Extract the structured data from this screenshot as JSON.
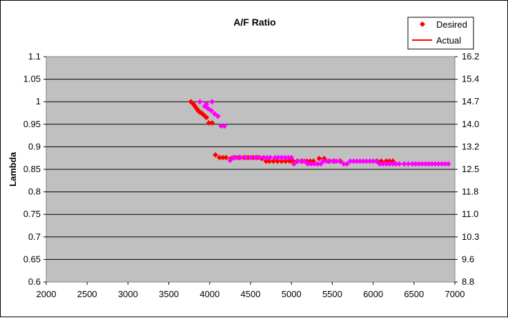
{
  "chart_data": {
    "type": "scatter",
    "title": "A/F Ratio",
    "ylabel": "Lambda",
    "xlabel": "",
    "xlim": [
      2000,
      7000
    ],
    "ylim": [
      0.6,
      1.1
    ],
    "x_ticks": [
      "2000",
      "2500",
      "3000",
      "3500",
      "4000",
      "4500",
      "5000",
      "5500",
      "6000",
      "6500",
      "7000"
    ],
    "y_ticks": [
      "0.6",
      "0.65",
      "0.7",
      "0.75",
      "0.8",
      "0.85",
      "0.9",
      "0.95",
      "1",
      "1.05",
      "1.1"
    ],
    "y2_ticks": [
      "8.8",
      "9.6",
      "10.3",
      "11.0",
      "11.8",
      "12.5",
      "13.2",
      "14.0",
      "14.7",
      "15.4",
      "16.2"
    ],
    "grid": "horizontal",
    "legend": "top-right",
    "legend_entries": {
      "desired": "Desired",
      "actual": "Actual"
    },
    "colors": {
      "plot_bg": "#c0c0c0",
      "desired": "#ff0000",
      "magenta": "#ff00ff",
      "actual": "#ff0000"
    },
    "series": [
      {
        "name": "Desired",
        "color": "#ff0000",
        "points": [
          [
            3770,
            1.0
          ],
          [
            3800,
            0.995
          ],
          [
            3820,
            0.99
          ],
          [
            3840,
            0.985
          ],
          [
            3860,
            0.98
          ],
          [
            3880,
            0.977
          ],
          [
            3900,
            0.975
          ],
          [
            3930,
            0.97
          ],
          [
            3960,
            0.965
          ],
          [
            3990,
            0.953
          ],
          [
            4030,
            0.953
          ],
          [
            4070,
            0.882
          ],
          [
            4120,
            0.876
          ],
          [
            4160,
            0.876
          ],
          [
            4200,
            0.876
          ],
          [
            4260,
            0.874
          ],
          [
            4300,
            0.876
          ],
          [
            4360,
            0.876
          ],
          [
            4420,
            0.876
          ],
          [
            4470,
            0.876
          ],
          [
            4530,
            0.876
          ],
          [
            4580,
            0.876
          ],
          [
            4640,
            0.874
          ],
          [
            4690,
            0.868
          ],
          [
            4730,
            0.868
          ],
          [
            4780,
            0.868
          ],
          [
            4830,
            0.868
          ],
          [
            4880,
            0.868
          ],
          [
            4930,
            0.868
          ],
          [
            4980,
            0.868
          ],
          [
            5020,
            0.868
          ],
          [
            5070,
            0.868
          ],
          [
            5130,
            0.868
          ],
          [
            5190,
            0.868
          ],
          [
            5230,
            0.868
          ],
          [
            5270,
            0.868
          ],
          [
            5340,
            0.874
          ],
          [
            5400,
            0.874
          ],
          [
            5460,
            0.868
          ],
          [
            5520,
            0.868
          ],
          [
            5600,
            0.868
          ],
          [
            6050,
            0.868
          ],
          [
            6100,
            0.868
          ],
          [
            6160,
            0.868
          ],
          [
            6200,
            0.868
          ],
          [
            6240,
            0.868
          ]
        ]
      },
      {
        "name": "",
        "color": "#ff00ff",
        "points": [
          [
            3880,
            1.0
          ],
          [
            3960,
            0.995
          ],
          [
            4030,
            1.0
          ],
          [
            3940,
            0.99
          ],
          [
            3980,
            0.985
          ],
          [
            4020,
            0.98
          ],
          [
            4060,
            0.973
          ],
          [
            4100,
            0.968
          ],
          [
            4140,
            0.946
          ],
          [
            4180,
            0.946
          ],
          [
            4250,
            0.87
          ],
          [
            4290,
            0.876
          ],
          [
            4330,
            0.876
          ],
          [
            4380,
            0.876
          ],
          [
            4440,
            0.876
          ],
          [
            4500,
            0.876
          ],
          [
            4560,
            0.876
          ],
          [
            4610,
            0.876
          ],
          [
            4660,
            0.876
          ],
          [
            4700,
            0.876
          ],
          [
            4740,
            0.876
          ],
          [
            4800,
            0.876
          ],
          [
            4840,
            0.876
          ],
          [
            4880,
            0.876
          ],
          [
            4920,
            0.876
          ],
          [
            4960,
            0.876
          ],
          [
            5000,
            0.876
          ],
          [
            5030,
            0.862
          ],
          [
            5080,
            0.868
          ],
          [
            5120,
            0.868
          ],
          [
            5160,
            0.868
          ],
          [
            5200,
            0.862
          ],
          [
            5240,
            0.862
          ],
          [
            5280,
            0.862
          ],
          [
            5320,
            0.862
          ],
          [
            5360,
            0.862
          ],
          [
            5390,
            0.868
          ],
          [
            5430,
            0.868
          ],
          [
            5470,
            0.868
          ],
          [
            5510,
            0.868
          ],
          [
            5550,
            0.868
          ],
          [
            5590,
            0.868
          ],
          [
            5640,
            0.862
          ],
          [
            5680,
            0.862
          ],
          [
            5720,
            0.868
          ],
          [
            5760,
            0.868
          ],
          [
            5800,
            0.868
          ],
          [
            5840,
            0.868
          ],
          [
            5880,
            0.868
          ],
          [
            5920,
            0.868
          ],
          [
            5960,
            0.868
          ],
          [
            6000,
            0.868
          ],
          [
            6040,
            0.868
          ],
          [
            6080,
            0.862
          ],
          [
            6120,
            0.862
          ],
          [
            6160,
            0.862
          ],
          [
            6200,
            0.862
          ],
          [
            6240,
            0.862
          ],
          [
            6280,
            0.862
          ],
          [
            6320,
            0.862
          ],
          [
            6380,
            0.862
          ],
          [
            6430,
            0.862
          ],
          [
            6480,
            0.862
          ],
          [
            6520,
            0.862
          ],
          [
            6560,
            0.862
          ],
          [
            6600,
            0.862
          ],
          [
            6640,
            0.862
          ],
          [
            6680,
            0.862
          ],
          [
            6720,
            0.862
          ],
          [
            6760,
            0.862
          ],
          [
            6800,
            0.862
          ],
          [
            6840,
            0.862
          ],
          [
            6880,
            0.862
          ],
          [
            6920,
            0.862
          ]
        ]
      }
    ]
  }
}
